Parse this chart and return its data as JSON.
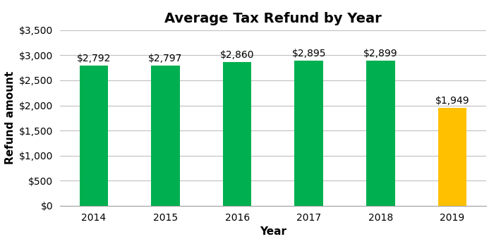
{
  "title": "Average Tax Refund by Year",
  "xlabel": "Year",
  "ylabel": "Refund amount",
  "categories": [
    "2014",
    "2015",
    "2016",
    "2017",
    "2018",
    "2019"
  ],
  "values": [
    2792,
    2797,
    2860,
    2895,
    2899,
    1949
  ],
  "bar_colors": [
    "#00b050",
    "#00b050",
    "#00b050",
    "#00b050",
    "#00b050",
    "#ffc000"
  ],
  "bar_labels": [
    "$2,792",
    "$2,797",
    "$2,860",
    "$2,895",
    "$2,899",
    "$1,949"
  ],
  "ylim": [
    0,
    3500
  ],
  "yticks": [
    0,
    500,
    1000,
    1500,
    2000,
    2500,
    3000,
    3500
  ],
  "ytick_labels": [
    "$0",
    "$500",
    "$1,000",
    "$1,500",
    "$2,000",
    "$2,500",
    "$3,000",
    "$3,500"
  ],
  "background_color": "#ffffff",
  "grid_color": "#bfbfbf",
  "title_fontsize": 14,
  "axis_label_fontsize": 11,
  "tick_fontsize": 10,
  "bar_label_fontsize": 10,
  "bar_width": 0.4,
  "figsize": [
    7.1,
    3.56
  ],
  "dpi": 100
}
